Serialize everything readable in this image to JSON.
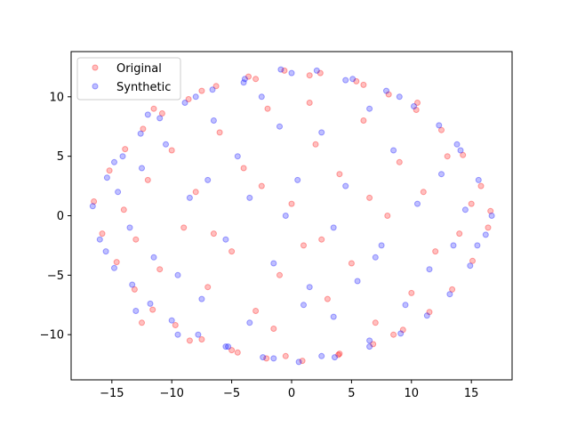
{
  "chart_data": {
    "type": "scatter",
    "title": "",
    "xlabel": "",
    "ylabel": "",
    "xlim": [
      -18.4,
      18.4
    ],
    "ylim": [
      -13.8,
      13.8
    ],
    "x_ticks": [
      -15,
      -10,
      -5,
      0,
      5,
      10,
      15
    ],
    "x_tick_labels": [
      "−15",
      "−10",
      "−5",
      "0",
      "5",
      "10",
      "15"
    ],
    "y_ticks": [
      -10,
      -5,
      0,
      5,
      10
    ],
    "y_tick_labels": [
      "−10",
      "−5",
      "0",
      "5",
      "10"
    ],
    "grid": false,
    "legend_position": "upper-left",
    "marker": "circle",
    "point_alpha": 0.25,
    "series": [
      {
        "name": "Original",
        "color": "#ff0000",
        "points": [
          [
            -16.5,
            1.2
          ],
          [
            -15.8,
            -1.5
          ],
          [
            -15.2,
            3.8
          ],
          [
            -14.6,
            -3.9
          ],
          [
            -13.9,
            5.6
          ],
          [
            -13.1,
            -6.2
          ],
          [
            -12.4,
            7.3
          ],
          [
            -11.6,
            -7.9
          ],
          [
            -10.8,
            8.6
          ],
          [
            -9.7,
            -9.2
          ],
          [
            -8.6,
            9.8
          ],
          [
            -7.5,
            -10.4
          ],
          [
            -6.3,
            10.9
          ],
          [
            -5.0,
            -11.3
          ],
          [
            -3.6,
            11.7
          ],
          [
            -2.1,
            -12.0
          ],
          [
            -0.6,
            12.2
          ],
          [
            0.9,
            -12.2
          ],
          [
            2.4,
            12.0
          ],
          [
            3.9,
            -11.7
          ],
          [
            5.4,
            11.3
          ],
          [
            6.8,
            -10.8
          ],
          [
            8.1,
            10.2
          ],
          [
            9.3,
            -9.6
          ],
          [
            10.4,
            8.9
          ],
          [
            11.5,
            -8.1
          ],
          [
            12.5,
            7.2
          ],
          [
            13.4,
            -6.2
          ],
          [
            14.3,
            5.1
          ],
          [
            15.1,
            -3.8
          ],
          [
            15.8,
            2.5
          ],
          [
            16.4,
            -1.0
          ],
          [
            16.6,
            0.4
          ],
          [
            -14.0,
            0.5
          ],
          [
            -13.0,
            -2.0
          ],
          [
            -12.0,
            3.0
          ],
          [
            -11.0,
            -4.5
          ],
          [
            -10.0,
            5.5
          ],
          [
            -9.0,
            -1.0
          ],
          [
            -8.0,
            2.0
          ],
          [
            -7.0,
            -6.0
          ],
          [
            -6.0,
            7.0
          ],
          [
            -5.0,
            -3.0
          ],
          [
            -4.0,
            4.0
          ],
          [
            -3.0,
            -8.0
          ],
          [
            -2.0,
            9.0
          ],
          [
            -1.0,
            -5.0
          ],
          [
            0.0,
            1.0
          ],
          [
            1.0,
            -2.5
          ],
          [
            2.0,
            6.0
          ],
          [
            3.0,
            -7.0
          ],
          [
            4.0,
            3.5
          ],
          [
            5.0,
            -4.0
          ],
          [
            6.0,
            8.0
          ],
          [
            7.0,
            -9.0
          ],
          [
            8.0,
            0.0
          ],
          [
            9.0,
            4.5
          ],
          [
            10.0,
            -6.5
          ],
          [
            11.0,
            2.0
          ],
          [
            12.0,
            -3.0
          ],
          [
            13.0,
            5.0
          ],
          [
            14.0,
            -1.5
          ],
          [
            15.0,
            1.0
          ],
          [
            -12.5,
            -9.0
          ],
          [
            -8.5,
            -10.5
          ],
          [
            -4.5,
            -11.5
          ],
          [
            -0.5,
            -11.8
          ],
          [
            4.0,
            -11.6
          ],
          [
            8.5,
            -10.0
          ],
          [
            -11.5,
            9.0
          ],
          [
            -7.5,
            10.5
          ],
          [
            -3.0,
            11.5
          ],
          [
            1.5,
            11.8
          ],
          [
            6.0,
            11.0
          ],
          [
            10.5,
            9.5
          ],
          [
            -2.5,
            2.5
          ],
          [
            2.5,
            -2.0
          ],
          [
            -6.5,
            -1.5
          ],
          [
            6.5,
            1.5
          ],
          [
            -1.5,
            -9.5
          ],
          [
            1.5,
            9.5
          ]
        ]
      },
      {
        "name": "Synthetic",
        "color": "#0000ff",
        "points": [
          [
            -16.6,
            0.8
          ],
          [
            -16.0,
            -2.0
          ],
          [
            -15.4,
            3.2
          ],
          [
            -14.8,
            -4.4
          ],
          [
            -14.1,
            5.0
          ],
          [
            -13.3,
            -5.8
          ],
          [
            -12.6,
            6.9
          ],
          [
            -11.8,
            -7.4
          ],
          [
            -11.0,
            8.2
          ],
          [
            -10.0,
            -8.8
          ],
          [
            -8.9,
            9.5
          ],
          [
            -7.8,
            -10.0
          ],
          [
            -6.6,
            10.6
          ],
          [
            -5.3,
            -11.0
          ],
          [
            -3.9,
            11.5
          ],
          [
            -2.4,
            -11.9
          ],
          [
            -0.9,
            12.3
          ],
          [
            0.6,
            -12.3
          ],
          [
            2.1,
            12.2
          ],
          [
            3.6,
            -11.9
          ],
          [
            5.1,
            11.5
          ],
          [
            6.5,
            -11.0
          ],
          [
            7.9,
            10.5
          ],
          [
            9.1,
            -9.9
          ],
          [
            10.2,
            9.2
          ],
          [
            11.3,
            -8.4
          ],
          [
            12.3,
            7.6
          ],
          [
            13.2,
            -6.6
          ],
          [
            14.1,
            5.5
          ],
          [
            14.9,
            -4.2
          ],
          [
            15.6,
            3.0
          ],
          [
            16.2,
            -1.6
          ],
          [
            16.7,
            0.0
          ],
          [
            -14.5,
            2.0
          ],
          [
            -13.5,
            -1.0
          ],
          [
            -12.5,
            4.0
          ],
          [
            -11.5,
            -3.5
          ],
          [
            -10.5,
            6.0
          ],
          [
            -9.5,
            -5.0
          ],
          [
            -8.5,
            1.5
          ],
          [
            -7.5,
            -7.0
          ],
          [
            -6.5,
            8.0
          ],
          [
            -5.5,
            -2.0
          ],
          [
            -4.5,
            5.0
          ],
          [
            -3.5,
            -9.0
          ],
          [
            -2.5,
            10.0
          ],
          [
            -1.5,
            -4.0
          ],
          [
            -0.5,
            0.0
          ],
          [
            0.5,
            3.0
          ],
          [
            1.5,
            -6.0
          ],
          [
            2.5,
            7.0
          ],
          [
            3.5,
            -8.5
          ],
          [
            4.5,
            2.5
          ],
          [
            5.5,
            -5.5
          ],
          [
            6.5,
            9.0
          ],
          [
            7.5,
            -2.5
          ],
          [
            8.5,
            5.5
          ],
          [
            9.5,
            -7.5
          ],
          [
            10.5,
            1.0
          ],
          [
            11.5,
            -4.5
          ],
          [
            12.5,
            3.5
          ],
          [
            13.5,
            -2.5
          ],
          [
            14.5,
            0.5
          ],
          [
            -13.0,
            -8.0
          ],
          [
            -9.5,
            -10.0
          ],
          [
            -5.5,
            -11.0
          ],
          [
            -1.5,
            -12.0
          ],
          [
            2.5,
            -11.8
          ],
          [
            6.5,
            -10.5
          ],
          [
            -12.0,
            8.5
          ],
          [
            -8.0,
            10.0
          ],
          [
            -4.0,
            11.2
          ],
          [
            0.0,
            12.0
          ],
          [
            4.5,
            11.4
          ],
          [
            9.0,
            10.0
          ],
          [
            -3.5,
            1.5
          ],
          [
            3.5,
            -1.0
          ],
          [
            -7.0,
            3.0
          ],
          [
            7.0,
            -3.5
          ],
          [
            -1.0,
            7.5
          ],
          [
            1.0,
            -7.5
          ],
          [
            13.8,
            6.0
          ],
          [
            -15.5,
            -3.0
          ],
          [
            15.5,
            -2.5
          ],
          [
            -14.8,
            4.5
          ]
        ]
      }
    ]
  }
}
